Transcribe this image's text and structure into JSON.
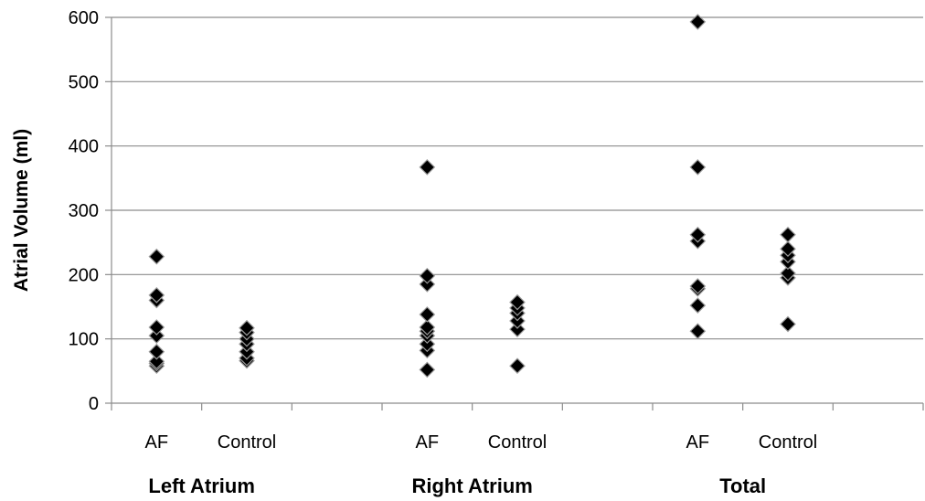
{
  "chart_data": {
    "type": "scatter",
    "title": "",
    "ylabel": "Atrial Volume (ml)",
    "xlabel": "",
    "ylim": [
      0,
      600
    ],
    "yticks": [
      0,
      100,
      200,
      300,
      400,
      500,
      600
    ],
    "grid": true,
    "legend": "none",
    "marker_color": "#000000",
    "groups": [
      {
        "label": "Left Atrium",
        "categories": [
          {
            "label": "AF",
            "values": [
              58,
              62,
              65,
              80,
              105,
              118,
              160,
              168,
              228
            ]
          },
          {
            "label": "Control",
            "values": [
              66,
              70,
              80,
              92,
              100,
              110,
              117
            ]
          }
        ]
      },
      {
        "label": "Right Atrium",
        "categories": [
          {
            "label": "AF",
            "values": [
              52,
              82,
              92,
              105,
              112,
              118,
              138,
              185,
              198,
              367
            ]
          },
          {
            "label": "Control",
            "values": [
              58,
              115,
              128,
              140,
              148,
              157
            ]
          }
        ]
      },
      {
        "label": "Total",
        "categories": [
          {
            "label": "AF",
            "values": [
              112,
              152,
              178,
              182,
              252,
              262,
              367,
              593
            ]
          },
          {
            "label": "Control",
            "values": [
              123,
              195,
              202,
              220,
              230,
              240,
              262
            ]
          }
        ]
      }
    ]
  }
}
